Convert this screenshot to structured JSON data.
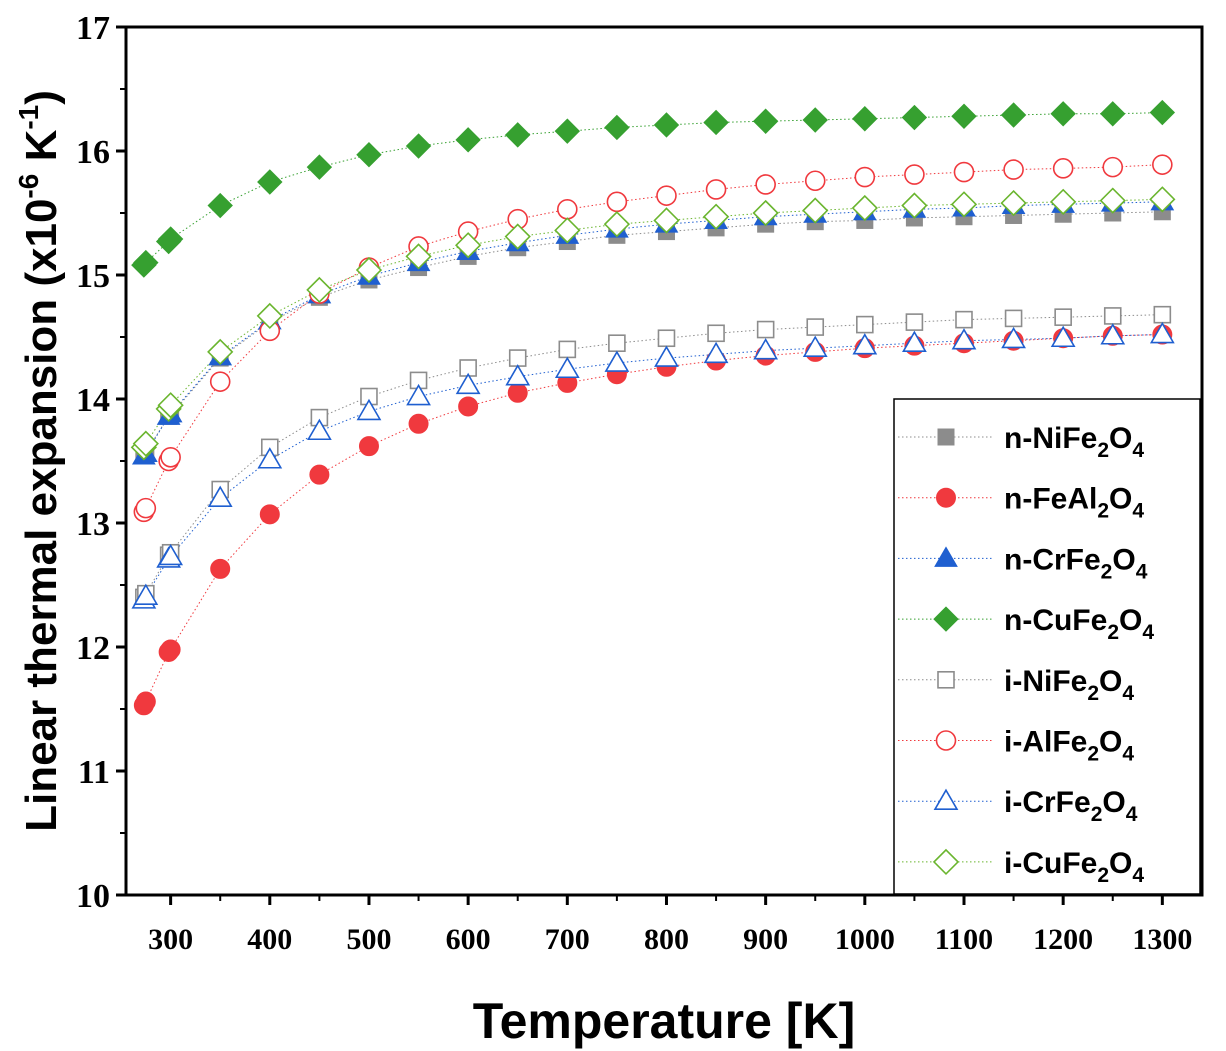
{
  "chart_data": {
    "type": "scatter",
    "xlabel": "Temperature [K]",
    "ylabel_main": "Linear thermal expansion (x10",
    "ylabel_exp1": "-6",
    "ylabel_unit": " K",
    "ylabel_exp2": "-1",
    "ylabel_end": ")",
    "xlim": [
      255,
      1340
    ],
    "ylim": [
      10,
      17
    ],
    "xticks": [
      300,
      400,
      500,
      600,
      700,
      800,
      900,
      1000,
      1100,
      1200,
      1300
    ],
    "yticks": [
      10,
      11,
      12,
      13,
      14,
      15,
      16,
      17
    ],
    "x": [
      273,
      275,
      298,
      300,
      350,
      400,
      450,
      500,
      550,
      600,
      650,
      700,
      750,
      800,
      850,
      900,
      950,
      1000,
      1050,
      1100,
      1150,
      1200,
      1250,
      1300
    ],
    "series": [
      {
        "name": "n-NiFe2O4",
        "prefix": "n-NiFe",
        "sub1": "2",
        "mid": "O",
        "sub2": "4",
        "color": "#8c8c8c",
        "marker": "square",
        "filled": true,
        "values": [
          13.55,
          13.57,
          13.86,
          13.87,
          14.33,
          14.62,
          14.82,
          14.96,
          15.06,
          15.15,
          15.22,
          15.27,
          15.32,
          15.35,
          15.38,
          15.41,
          15.43,
          15.44,
          15.46,
          15.47,
          15.48,
          15.49,
          15.5,
          15.51
        ]
      },
      {
        "name": "n-FeAl2O4",
        "prefix": "n-FeAl",
        "sub1": "2",
        "mid": "O",
        "sub2": "4",
        "color": "#f0393e",
        "marker": "circle",
        "filled": true,
        "values": [
          11.53,
          11.56,
          11.96,
          11.98,
          12.63,
          13.07,
          13.39,
          13.62,
          13.8,
          13.94,
          14.05,
          14.13,
          14.2,
          14.26,
          14.31,
          14.35,
          14.38,
          14.41,
          14.43,
          14.45,
          14.47,
          14.49,
          14.51,
          14.52
        ]
      },
      {
        "name": "n-CrFe2O4",
        "prefix": "n-CrFe",
        "sub1": "2",
        "mid": "O",
        "sub2": "4",
        "color": "#1f5fd0",
        "marker": "triangle",
        "filled": true,
        "values": [
          13.54,
          13.56,
          13.86,
          13.88,
          14.34,
          14.63,
          14.84,
          14.99,
          15.1,
          15.19,
          15.26,
          15.32,
          15.37,
          15.41,
          15.44,
          15.47,
          15.49,
          15.51,
          15.53,
          15.54,
          15.56,
          15.57,
          15.58,
          15.59
        ]
      },
      {
        "name": "n-CuFe2O4",
        "prefix": "n-CuFe",
        "sub1": "2",
        "mid": "O",
        "sub2": "4",
        "color": "#36a030",
        "marker": "diamond",
        "filled": true,
        "values": [
          15.08,
          15.1,
          15.27,
          15.29,
          15.56,
          15.75,
          15.87,
          15.97,
          16.04,
          16.09,
          16.13,
          16.16,
          16.19,
          16.21,
          16.23,
          16.24,
          16.25,
          16.26,
          16.27,
          16.28,
          16.29,
          16.3,
          16.3,
          16.31
        ]
      },
      {
        "name": "i-NiFe2O4",
        "prefix": "i-NiFe",
        "sub1": "2",
        "mid": "O",
        "sub2": "4",
        "color": "#8c8c8c",
        "marker": "square",
        "filled": false,
        "values": [
          12.4,
          12.43,
          12.74,
          12.76,
          13.27,
          13.61,
          13.85,
          14.02,
          14.15,
          14.25,
          14.33,
          14.4,
          14.45,
          14.49,
          14.53,
          14.56,
          14.58,
          14.6,
          14.62,
          14.64,
          14.65,
          14.66,
          14.67,
          14.68
        ]
      },
      {
        "name": "i-AlFe2O4",
        "prefix": "i-AlFe",
        "sub1": "2",
        "mid": "O",
        "sub2": "4",
        "color": "#f0393e",
        "marker": "circle",
        "filled": false,
        "values": [
          13.09,
          13.12,
          13.5,
          13.53,
          14.14,
          14.55,
          14.85,
          15.06,
          15.23,
          15.35,
          15.45,
          15.53,
          15.59,
          15.64,
          15.69,
          15.73,
          15.76,
          15.79,
          15.81,
          15.83,
          15.85,
          15.86,
          15.87,
          15.89
        ]
      },
      {
        "name": "i-CrFe2O4",
        "prefix": "i-CrFe",
        "sub1": "2",
        "mid": "O",
        "sub2": "4",
        "color": "#1f5fd0",
        "marker": "triangle",
        "filled": false,
        "values": [
          12.38,
          12.41,
          12.71,
          12.73,
          13.2,
          13.51,
          13.74,
          13.9,
          14.02,
          14.11,
          14.18,
          14.24,
          14.29,
          14.33,
          14.36,
          14.39,
          14.41,
          14.43,
          14.45,
          14.47,
          14.48,
          14.49,
          14.51,
          14.52
        ]
      },
      {
        "name": "i-CuFe2O4",
        "prefix": "i-CuFe",
        "sub1": "2",
        "mid": "O",
        "sub2": "4",
        "color": "#6ab52e",
        "marker": "diamond",
        "filled": false,
        "values": [
          13.61,
          13.64,
          13.92,
          13.95,
          14.38,
          14.67,
          14.88,
          15.04,
          15.15,
          15.24,
          15.31,
          15.36,
          15.41,
          15.44,
          15.47,
          15.5,
          15.52,
          15.54,
          15.56,
          15.57,
          15.58,
          15.59,
          15.6,
          15.61
        ]
      }
    ]
  }
}
